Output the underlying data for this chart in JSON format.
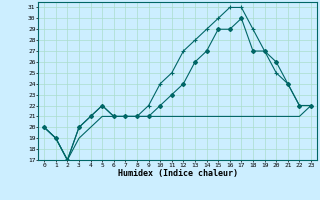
{
  "xlabel": "Humidex (Indice chaleur)",
  "bg_color": "#cceeff",
  "grid_color": "#aaddcc",
  "line_color": "#006666",
  "xlim_min": -0.5,
  "xlim_max": 23.5,
  "ylim_min": 17,
  "ylim_max": 31.5,
  "xticks": [
    0,
    1,
    2,
    3,
    4,
    5,
    6,
    7,
    8,
    9,
    10,
    11,
    12,
    13,
    14,
    15,
    16,
    17,
    18,
    19,
    20,
    21,
    22,
    23
  ],
  "yticks": [
    17,
    18,
    19,
    20,
    21,
    22,
    23,
    24,
    25,
    26,
    27,
    28,
    29,
    30,
    31
  ],
  "series1_x": [
    0,
    1,
    2,
    3,
    4,
    5,
    6,
    7,
    8,
    9,
    10,
    11,
    12,
    13,
    14,
    15,
    16,
    17,
    18,
    19,
    20,
    21,
    22,
    23
  ],
  "series1_y": [
    20,
    19,
    17,
    19,
    20,
    21,
    21,
    21,
    21,
    21,
    21,
    21,
    21,
    21,
    21,
    21,
    21,
    21,
    21,
    21,
    21,
    21,
    21,
    22
  ],
  "series2_x": [
    0,
    1,
    2,
    3,
    4,
    5,
    6,
    7,
    8,
    9,
    10,
    11,
    12,
    13,
    14,
    15,
    16,
    17,
    18,
    19,
    20,
    21,
    22,
    23
  ],
  "series2_y": [
    20,
    19,
    17,
    20,
    21,
    22,
    21,
    21,
    21,
    22,
    24,
    25,
    27,
    28,
    29,
    30,
    31,
    31,
    29,
    27,
    25,
    24,
    22,
    22
  ],
  "series3_x": [
    0,
    1,
    2,
    3,
    4,
    5,
    6,
    7,
    8,
    9,
    10,
    11,
    12,
    13,
    14,
    15,
    16,
    17,
    18,
    19,
    20,
    21,
    22,
    23
  ],
  "series3_y": [
    20,
    19,
    17,
    20,
    21,
    22,
    21,
    21,
    21,
    21,
    22,
    23,
    24,
    26,
    27,
    29,
    29,
    30,
    27,
    27,
    26,
    24,
    22,
    22
  ]
}
